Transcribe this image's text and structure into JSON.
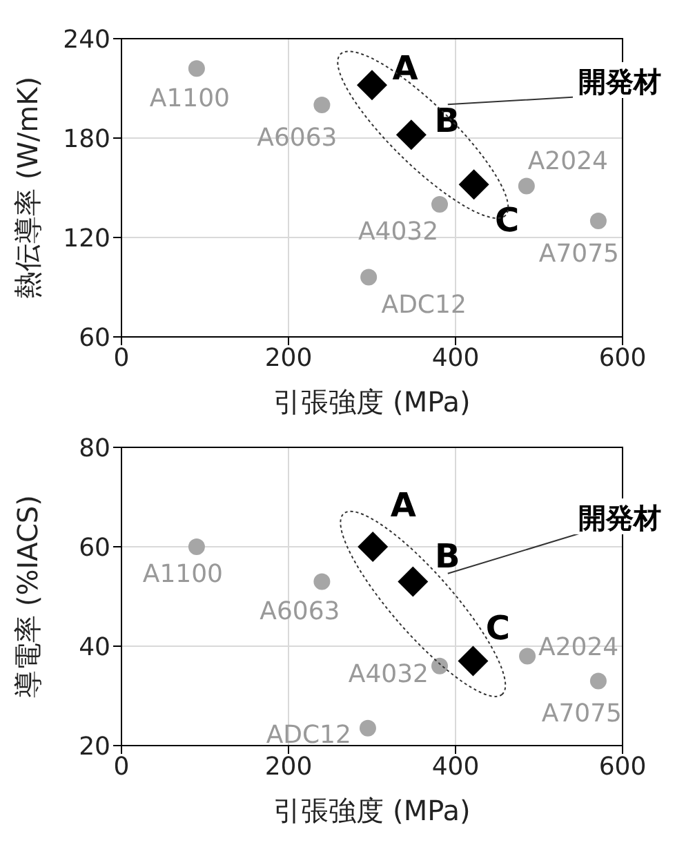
{
  "chart_data": [
    {
      "type": "scatter",
      "xlabel": "引張強度 (MPa)",
      "ylabel": "熱伝導率 (W/mK)",
      "xlim": [
        0,
        600
      ],
      "xticks": [
        0,
        200,
        400,
        600
      ],
      "ylim": [
        60,
        240
      ],
      "yticks": [
        60,
        120,
        180,
        240
      ],
      "grid": true,
      "annotations": [
        "開発材"
      ],
      "series": [
        {
          "name": "A1100",
          "color": "#a6a6a6",
          "marker": "circle",
          "x": [
            90
          ],
          "values": [
            222
          ]
        },
        {
          "name": "A6063",
          "color": "#a6a6a6",
          "marker": "circle",
          "x": [
            240
          ],
          "values": [
            200
          ]
        },
        {
          "name": "A4032",
          "color": "#a6a6a6",
          "marker": "circle",
          "x": [
            381
          ],
          "values": [
            140
          ]
        },
        {
          "name": "A2024",
          "color": "#a6a6a6",
          "marker": "circle",
          "x": [
            485
          ],
          "values": [
            151
          ]
        },
        {
          "name": "A7075",
          "color": "#a6a6a6",
          "marker": "circle",
          "x": [
            571
          ],
          "values": [
            130
          ]
        },
        {
          "name": "ADC12",
          "color": "#a6a6a6",
          "marker": "circle",
          "x": [
            296
          ],
          "values": [
            96
          ]
        },
        {
          "name": "A",
          "color": "#000000",
          "marker": "diamond",
          "x": [
            300
          ],
          "values": [
            212
          ]
        },
        {
          "name": "B",
          "color": "#000000",
          "marker": "diamond",
          "x": [
            347
          ],
          "values": [
            182
          ]
        },
        {
          "name": "C",
          "color": "#000000",
          "marker": "diamond",
          "x": [
            422
          ],
          "values": [
            152
          ]
        }
      ]
    },
    {
      "type": "scatter",
      "xlabel": "引張強度 (MPa)",
      "ylabel": "導電率 (%IACS)",
      "xlim": [
        0,
        600
      ],
      "xticks": [
        0,
        200,
        400,
        600
      ],
      "ylim": [
        20,
        80
      ],
      "yticks": [
        20,
        40,
        60,
        80
      ],
      "grid": true,
      "annotations": [
        "開発材"
      ],
      "series": [
        {
          "name": "A1100",
          "color": "#a6a6a6",
          "marker": "circle",
          "x": [
            90
          ],
          "values": [
            60
          ]
        },
        {
          "name": "A6063",
          "color": "#a6a6a6",
          "marker": "circle",
          "x": [
            240
          ],
          "values": [
            53
          ]
        },
        {
          "name": "A4032",
          "color": "#a6a6a6",
          "marker": "circle",
          "x": [
            381
          ],
          "values": [
            36
          ]
        },
        {
          "name": "A2024",
          "color": "#a6a6a6",
          "marker": "circle",
          "x": [
            486
          ],
          "values": [
            38
          ]
        },
        {
          "name": "A7075",
          "color": "#a6a6a6",
          "marker": "circle",
          "x": [
            571
          ],
          "values": [
            33
          ]
        },
        {
          "name": "ADC12",
          "color": "#a6a6a6",
          "marker": "circle",
          "x": [
            295
          ],
          "values": [
            23.5
          ]
        },
        {
          "name": "A",
          "color": "#000000",
          "marker": "diamond",
          "x": [
            301
          ],
          "values": [
            60
          ]
        },
        {
          "name": "B",
          "color": "#000000",
          "marker": "diamond",
          "x": [
            349
          ],
          "values": [
            53
          ]
        },
        {
          "name": "C",
          "color": "#000000",
          "marker": "diamond",
          "x": [
            421
          ],
          "values": [
            37
          ]
        }
      ]
    }
  ]
}
